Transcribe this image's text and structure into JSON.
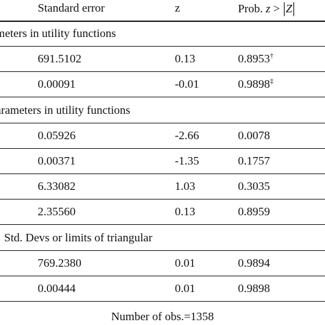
{
  "header": {
    "standard_error": "Standard error",
    "z": "z",
    "prob_prefix": "Prob.",
    "prob_var": "z",
    "prob_op": ">",
    "prob_abs": "Z"
  },
  "sections": [
    {
      "title": "meters in utility functions",
      "rows": [
        {
          "se": "691.5102",
          "z": "0.13",
          "p": "0.8953",
          "note": "†"
        },
        {
          "se": "0.00091",
          "z": "-0.01",
          "p": "0.9898",
          "note": "‡"
        }
      ]
    },
    {
      "title": "arameters in utility functions",
      "rows": [
        {
          "se": "0.05926",
          "z": "-2.66",
          "p": "0.0078"
        },
        {
          "se": "0.00371",
          "z": "-1.35",
          "p": "0.1757"
        },
        {
          "se": "6.33082",
          "z": "1.03",
          "p": "0.3035"
        },
        {
          "se": "2.35560",
          "z": "0.13",
          "p": "0.8959"
        }
      ]
    },
    {
      "title": "Std. Devs or limits of triangular",
      "rows": [
        {
          "se": "769.2380",
          "z": "0.01",
          "p": "0.9894"
        },
        {
          "se": "0.00444",
          "z": "0.01",
          "p": "0.9898"
        }
      ]
    }
  ],
  "footer": "Number of obs.=1358"
}
